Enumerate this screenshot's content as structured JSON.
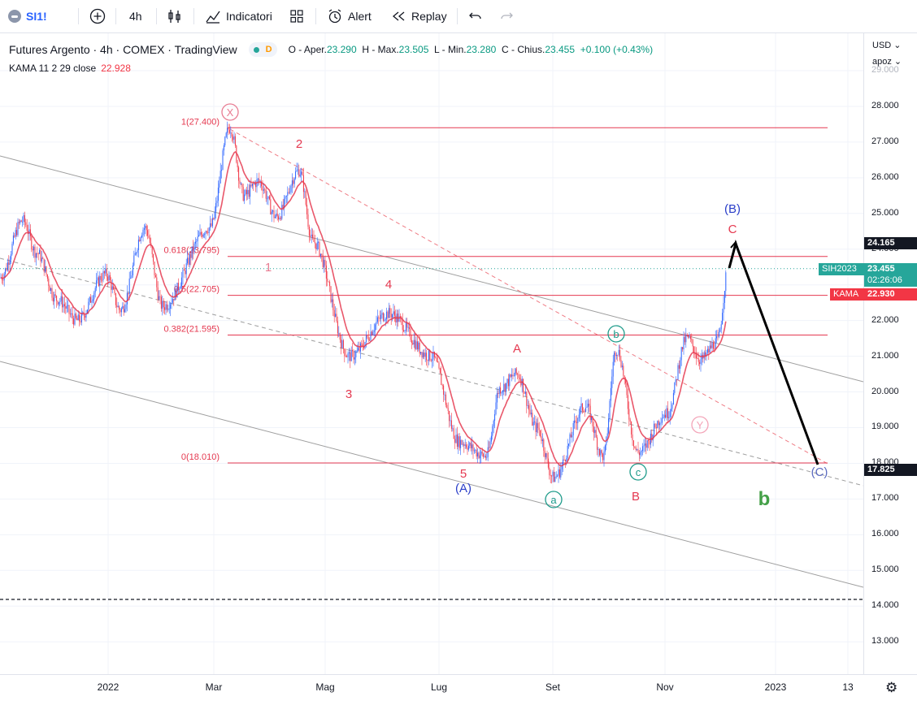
{
  "toolbar": {
    "symbol": "SI1!",
    "interval": "4h",
    "indicators_label": "Indicatori",
    "alert_label": "Alert",
    "replay_label": "Replay"
  },
  "legend": {
    "title": "Futures Argento · 4h · COMEX · TradingView",
    "status_letter": "D",
    "o_label": "O - Aper.",
    "o_value": "23.290",
    "h_label": "H - Max.",
    "h_value": "23.505",
    "l_label": "L - Min.",
    "l_value": "23.280",
    "c_label": "C - Chius.",
    "c_value": "23.455",
    "change": "+0.100 (+0.43%)",
    "kama_label": "KAMA 11 2 29 close",
    "kama_value": "22.928"
  },
  "price_axis": {
    "currency": "USD",
    "scale_mode": "apoz",
    "ticks": [
      "29.000",
      "28.000",
      "27.000",
      "26.000",
      "25.000",
      "24.000",
      "23.000",
      "22.000",
      "21.000",
      "20.000",
      "19.000",
      "18.000",
      "17.000",
      "16.000",
      "15.000",
      "14.000",
      "13.000"
    ],
    "labels": {
      "target_high": "24.165",
      "symbol_name": "SIH2023",
      "last_price": "23.455",
      "countdown": "02:26:06",
      "kama_name": "KAMA",
      "kama_price": "22.930",
      "target_low": "17.825"
    }
  },
  "time_axis": [
    "2022",
    "Mar",
    "Mag",
    "Lug",
    "Set",
    "Nov",
    "2023",
    "13"
  ],
  "fib_levels": [
    {
      "label": "1(27.400)",
      "price": 27.4
    },
    {
      "label": "0.618(23.795)",
      "price": 23.795
    },
    {
      "label": "0.5(22.705)",
      "price": 22.705
    },
    {
      "label": "0.382(21.595)",
      "price": 21.595
    },
    {
      "label": "0(18.010)",
      "price": 18.01
    }
  ],
  "wave_labels": {
    "x": "X",
    "w1": "1",
    "w2": "2",
    "w3": "3",
    "w4": "4",
    "w5": "5",
    "wA_paren": "(A)",
    "wB_paren": "(B)",
    "wC_paren": "(C)",
    "wA": "A",
    "wB": "B",
    "wC": "C",
    "wa": "a",
    "wb": "b",
    "wc": "c",
    "wY": "Y",
    "big_b": "b"
  },
  "colors": {
    "up": "#2962ff",
    "down": "#f23645",
    "fib": "#e53950",
    "wave_red": "#e53950",
    "wave_blue": "#2a3ec9",
    "wave_teal": "#1e9b8a",
    "wave_green": "#43a047",
    "last_price_bg": "#26a69a",
    "kama_bg": "#f23645"
  },
  "chart_data": {
    "type": "candlestick",
    "title": "Futures Argento · 4h · COMEX · TradingView",
    "x_range": [
      "2021-12",
      "2023-01-13"
    ],
    "ylim": [
      12.5,
      29.0
    ],
    "wave_path": [
      {
        "date": "2021-11",
        "close": 23.2
      },
      {
        "date": "2021-12",
        "close": 24.8
      },
      {
        "date": "2022-01",
        "close": 22.3
      },
      {
        "date": "2022-02",
        "close": 22.5
      },
      {
        "date": "2022-03",
        "close": 27.4
      },
      {
        "date": "2022-04",
        "close": 26.2
      },
      {
        "date": "2022-05",
        "close": 21.0
      },
      {
        "date": "2022-06",
        "close": 22.2
      },
      {
        "date": "2022-07",
        "close": 18.2
      },
      {
        "date": "2022-08",
        "close": 20.7
      },
      {
        "date": "2022-09",
        "close": 17.6
      },
      {
        "date": "2022-10",
        "close": 20.2
      },
      {
        "date": "2022-11",
        "close": 21.5
      },
      {
        "date": "2022-12",
        "close": 23.45
      }
    ],
    "projection": [
      {
        "date": "2022-12",
        "price": 24.165
      },
      {
        "date": "2023-01",
        "price": 17.825
      }
    ]
  }
}
